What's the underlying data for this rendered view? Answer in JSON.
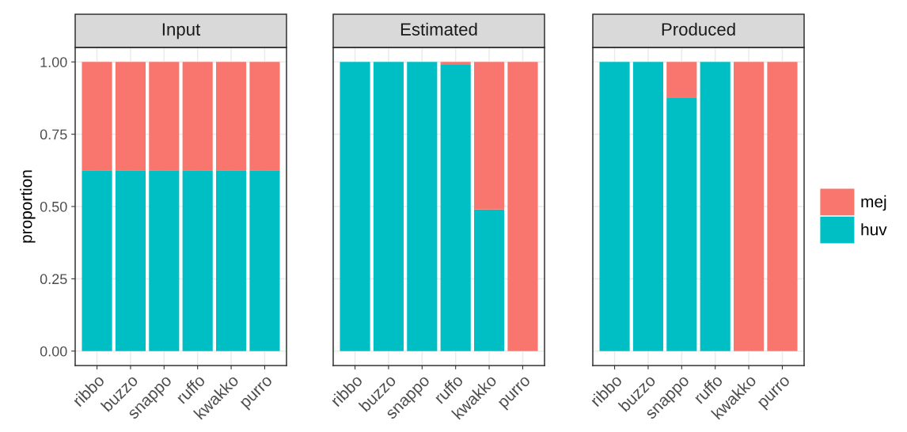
{
  "chart_data": [
    {
      "type": "bar",
      "title": "Input",
      "ylabel": "proportion",
      "stacked": true,
      "categories": [
        "ribbo",
        "buzzo",
        "snappo",
        "ruffo",
        "kwakko",
        "purro"
      ],
      "ylim": [
        -0.05,
        1.05
      ],
      "yticks": [
        {
          "value": 0,
          "label": "0.00"
        },
        {
          "value": 0.25,
          "label": "0.25"
        },
        {
          "value": 0.5,
          "label": "0.50"
        },
        {
          "value": 0.75,
          "label": "0.75"
        },
        {
          "value": 1,
          "label": "1.00"
        }
      ],
      "grid": true,
      "legend": "right",
      "series": [
        {
          "name": "huv",
          "color": "#00bfc4",
          "values": [
            0.625,
            0.625,
            0.625,
            0.625,
            0.625,
            0.625
          ]
        },
        {
          "name": "mej",
          "color": "#f8766d",
          "values": [
            0.375,
            0.375,
            0.375,
            0.375,
            0.375,
            0.375
          ]
        }
      ]
    },
    {
      "type": "bar",
      "title": "Estimated",
      "stacked": true,
      "categories": [
        "ribbo",
        "buzzo",
        "snappo",
        "ruffo",
        "kwakko",
        "purro"
      ],
      "ylim": [
        -0.05,
        1.05
      ],
      "yticks": [
        {
          "value": 0,
          "label": null
        },
        {
          "value": 0.25,
          "label": null
        },
        {
          "value": 0.5,
          "label": null
        },
        {
          "value": 0.75,
          "label": null
        },
        {
          "value": 1,
          "label": null
        }
      ],
      "tick_labels": "x",
      "grid": true,
      "series": [
        {
          "color": "#00bfc4",
          "values": [
            1,
            1,
            1,
            0.99,
            0.49,
            0
          ]
        },
        {
          "color": "#f8766d",
          "values": [
            0,
            0,
            0,
            0.01,
            0.51,
            1
          ]
        }
      ]
    },
    {
      "type": "bar",
      "title": "Produced",
      "stacked": true,
      "categories": [
        "ribbo",
        "buzzo",
        "snappo",
        "ruffo",
        "kwakko",
        "purro"
      ],
      "ylim": [
        -0.05,
        1.05
      ],
      "yticks": [
        {
          "value": 0,
          "label": null
        },
        {
          "value": 0.25,
          "label": null
        },
        {
          "value": 0.5,
          "label": null
        },
        {
          "value": 0.75,
          "label": null
        },
        {
          "value": 1,
          "label": null
        }
      ],
      "tick_labels": "x",
      "grid": true,
      "series": [
        {
          "color": "#00bfc4",
          "values": [
            1,
            1,
            0.875,
            1,
            0,
            0
          ]
        },
        {
          "color": "#f8766d",
          "values": [
            0,
            0,
            0.125,
            0,
            1,
            1
          ]
        }
      ]
    }
  ]
}
